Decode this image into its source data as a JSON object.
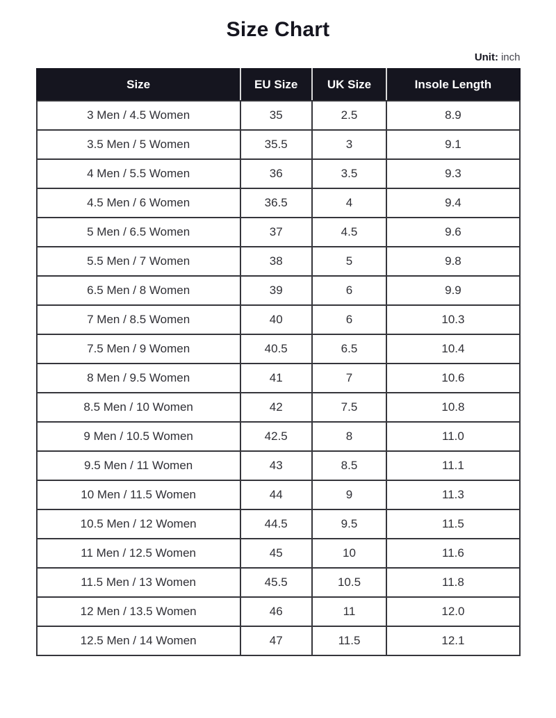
{
  "page": {
    "title": "Size Chart",
    "unit_label": "Unit:",
    "unit_value": "inch"
  },
  "colors": {
    "header_bg": "#15151f",
    "header_text": "#ffffff",
    "header_divider": "#d9d9d9",
    "body_border": "#35353b",
    "body_text": "#2f2f35",
    "background": "#ffffff"
  },
  "chart_data": {
    "type": "table",
    "title": "Size Chart",
    "unit": "inch",
    "columns": [
      "Size",
      "EU Size",
      "UK Size",
      "Insole Length"
    ],
    "rows": [
      [
        "3 Men / 4.5 Women",
        "35",
        "2.5",
        "8.9"
      ],
      [
        "3.5 Men / 5 Women",
        "35.5",
        "3",
        "9.1"
      ],
      [
        "4 Men / 5.5 Women",
        "36",
        "3.5",
        "9.3"
      ],
      [
        "4.5 Men / 6 Women",
        "36.5",
        "4",
        "9.4"
      ],
      [
        "5 Men / 6.5 Women",
        "37",
        "4.5",
        "9.6"
      ],
      [
        "5.5 Men / 7 Women",
        "38",
        "5",
        "9.8"
      ],
      [
        "6.5 Men / 8 Women",
        "39",
        "6",
        "9.9"
      ],
      [
        "7 Men / 8.5 Women",
        "40",
        "6",
        "10.3"
      ],
      [
        "7.5 Men / 9 Women",
        "40.5",
        "6.5",
        "10.4"
      ],
      [
        "8 Men / 9.5 Women",
        "41",
        "7",
        "10.6"
      ],
      [
        "8.5 Men / 10 Women",
        "42",
        "7.5",
        "10.8"
      ],
      [
        "9 Men / 10.5 Women",
        "42.5",
        "8",
        "11.0"
      ],
      [
        "9.5 Men / 11 Women",
        "43",
        "8.5",
        "11.1"
      ],
      [
        "10 Men / 11.5 Women",
        "44",
        "9",
        "11.3"
      ],
      [
        "10.5 Men / 12 Women",
        "44.5",
        "9.5",
        "11.5"
      ],
      [
        "11 Men / 12.5 Women",
        "45",
        "10",
        "11.6"
      ],
      [
        "11.5 Men / 13 Women",
        "45.5",
        "10.5",
        "11.8"
      ],
      [
        "12 Men / 13.5 Women",
        "46",
        "11",
        "12.0"
      ],
      [
        "12.5 Men / 14 Women",
        "47",
        "11.5",
        "12.1"
      ]
    ]
  }
}
